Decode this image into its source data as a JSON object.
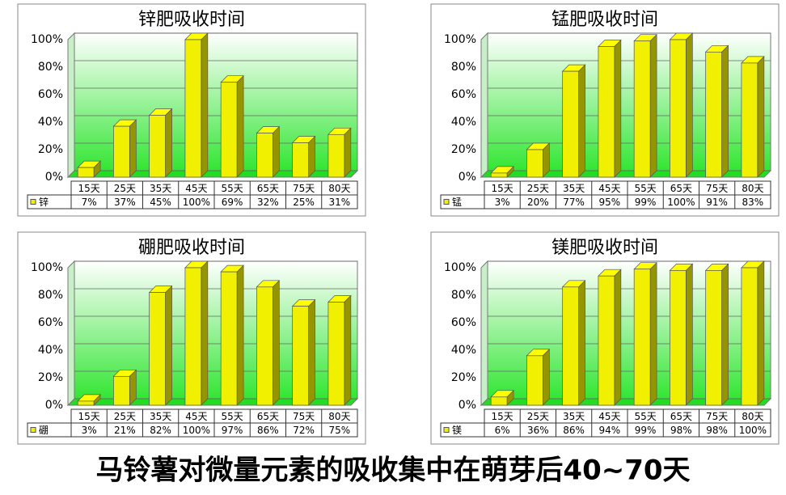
{
  "chart_data": [
    {
      "type": "bar",
      "title": "锌肥吸收时间",
      "categories": [
        "15天",
        "25天",
        "35天",
        "45天",
        "55天",
        "65天",
        "75天",
        "80天"
      ],
      "series": [
        {
          "name": "锌",
          "color": "#f0f000",
          "values": [
            7,
            37,
            45,
            100,
            69,
            32,
            25,
            31
          ],
          "value_labels": [
            "7%",
            "37%",
            "45%",
            "100%",
            "69%",
            "32%",
            "25%",
            "31%"
          ]
        }
      ],
      "ylim": [
        0,
        100
      ],
      "yticks": [
        {
          "value": 0,
          "label": "0%"
        },
        {
          "value": 20,
          "label": "20%"
        },
        {
          "value": 40,
          "label": "40%"
        },
        {
          "value": 60,
          "label": "60%"
        },
        {
          "value": 80,
          "label": "80%"
        },
        {
          "value": 100,
          "label": "100%"
        }
      ],
      "grid": true
    },
    {
      "type": "bar",
      "title": "锰肥吸收时间",
      "categories": [
        "15天",
        "25天",
        "35天",
        "45天",
        "55天",
        "65天",
        "75天",
        "80天"
      ],
      "series": [
        {
          "name": "锰",
          "color": "#f0f000",
          "values": [
            3,
            20,
            77,
            95,
            99,
            100,
            91,
            83
          ],
          "value_labels": [
            "3%",
            "20%",
            "77%",
            "95%",
            "99%",
            "100%",
            "91%",
            "83%"
          ]
        }
      ],
      "ylim": [
        0,
        100
      ],
      "yticks": [
        {
          "value": 0,
          "label": "0%"
        },
        {
          "value": 20,
          "label": "20%"
        },
        {
          "value": 40,
          "label": "40%"
        },
        {
          "value": 60,
          "label": "60%"
        },
        {
          "value": 80,
          "label": "80%"
        },
        {
          "value": 100,
          "label": "100%"
        }
      ],
      "grid": true
    },
    {
      "type": "bar",
      "title": "硼肥吸收时间",
      "categories": [
        "15天",
        "25天",
        "35天",
        "45天",
        "55天",
        "65天",
        "75天",
        "80天"
      ],
      "series": [
        {
          "name": "硼",
          "color": "#f0f000",
          "values": [
            3,
            21,
            82,
            100,
            97,
            86,
            72,
            75
          ],
          "value_labels": [
            "3%",
            "21%",
            "82%",
            "100%",
            "97%",
            "86%",
            "72%",
            "75%"
          ]
        }
      ],
      "ylim": [
        0,
        100
      ],
      "yticks": [
        {
          "value": 0,
          "label": "0%"
        },
        {
          "value": 20,
          "label": "20%"
        },
        {
          "value": 40,
          "label": "40%"
        },
        {
          "value": 60,
          "label": "60%"
        },
        {
          "value": 80,
          "label": "80%"
        },
        {
          "value": 100,
          "label": "100%"
        }
      ],
      "grid": true
    },
    {
      "type": "bar",
      "title": "镁肥吸收时间",
      "categories": [
        "15天",
        "25天",
        "35天",
        "45天",
        "55天",
        "65天",
        "75天",
        "80天"
      ],
      "series": [
        {
          "name": "镁",
          "color": "#f0f000",
          "values": [
            6,
            36,
            86,
            94,
            99,
            98,
            98,
            100
          ],
          "value_labels": [
            "6%",
            "36%",
            "86%",
            "94%",
            "99%",
            "98%",
            "98%",
            "100%"
          ]
        }
      ],
      "ylim": [
        0,
        100
      ],
      "yticks": [
        {
          "value": 0,
          "label": "0%"
        },
        {
          "value": 20,
          "label": "20%"
        },
        {
          "value": 40,
          "label": "40%"
        },
        {
          "value": 60,
          "label": "60%"
        },
        {
          "value": 80,
          "label": "80%"
        },
        {
          "value": 100,
          "label": "100%"
        }
      ],
      "grid": true
    }
  ],
  "caption": "马铃薯对微量元素的吸收集中在萌芽后40~70天"
}
